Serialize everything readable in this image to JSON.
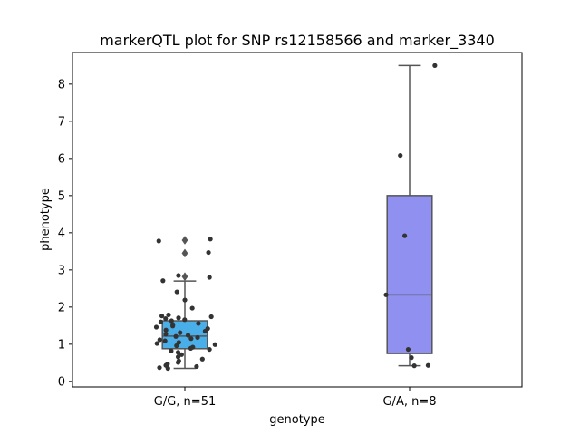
{
  "chart_data": {
    "type": "box",
    "title": "markerQTL plot for SNP rs12158566 and marker_3340",
    "xlabel": "genotype",
    "ylabel": "phenotype",
    "ylim": [
      -0.15,
      8.85
    ],
    "yticks": [
      0,
      1,
      2,
      3,
      4,
      5,
      6,
      7,
      8
    ],
    "grid": false,
    "categories": [
      "G/G, n=51",
      "G/A, n=8"
    ],
    "colors": [
      "#4aaee8",
      "#9090f0"
    ],
    "edge_color": "#555555",
    "point_color": "#333333",
    "boxes": [
      {
        "label": "G/G, n=51",
        "q1": 0.88,
        "median": 1.22,
        "q3": 1.63,
        "whisker_low": 0.35,
        "whisker_high": 2.7,
        "outliers": [
          2.82,
          3.45,
          3.8
        ],
        "points": [
          3.47,
          3.83,
          3.78,
          2.85,
          2.8,
          2.71,
          2.41,
          2.19,
          1.97,
          1.79,
          1.76,
          1.74,
          1.71,
          1.69,
          1.66,
          1.63,
          1.6,
          1.56,
          1.53,
          1.49,
          1.46,
          1.42,
          1.38,
          1.35,
          1.31,
          1.27,
          1.24,
          1.21,
          1.18,
          1.15,
          1.12,
          1.09,
          1.05,
          1.02,
          0.99,
          0.96,
          0.92,
          0.89,
          0.86,
          0.82,
          0.78,
          0.72,
          0.66,
          0.6,
          0.55,
          0.51,
          0.47,
          0.43,
          0.4,
          0.37,
          0.35
        ]
      },
      {
        "label": "G/A, n=8",
        "q1": 0.75,
        "median": 2.33,
        "q3": 5.0,
        "whisker_low": 0.42,
        "whisker_high": 8.5,
        "outliers": [],
        "points": [
          8.5,
          6.08,
          3.92,
          2.33,
          0.86,
          0.64,
          0.43,
          0.42
        ]
      }
    ]
  }
}
